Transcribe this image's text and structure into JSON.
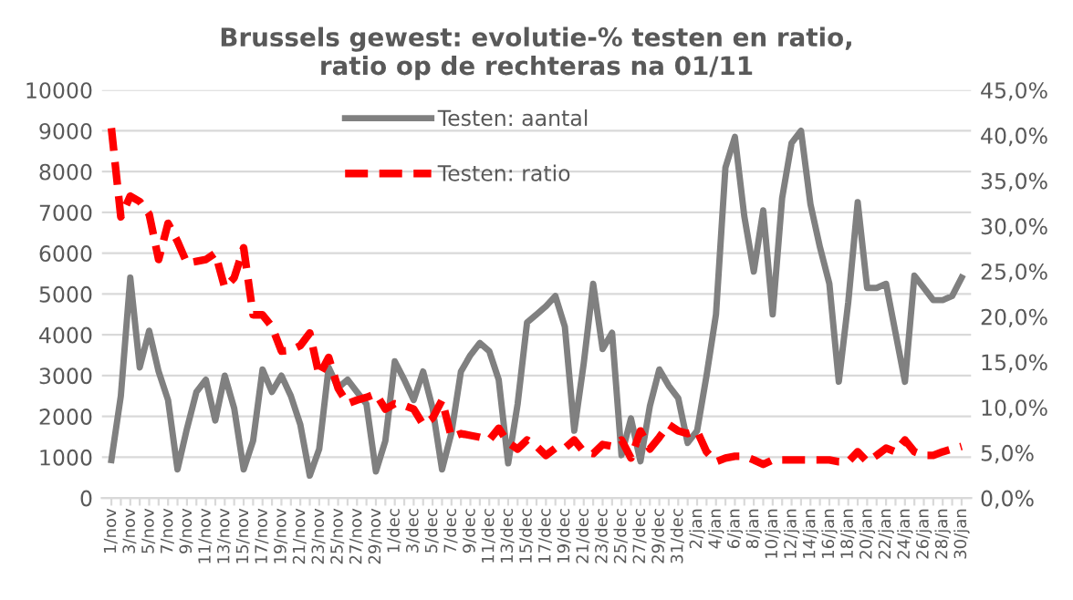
{
  "chart_data": {
    "type": "line",
    "title": "Brussels gewest: evolutie-% testen en ratio,\nratio op de rechteras na 01/11",
    "categories": [
      "1/nov",
      null,
      "3/nov",
      null,
      "5/nov",
      null,
      "7/nov",
      null,
      "9/nov",
      null,
      "11/nov",
      null,
      "13/nov",
      null,
      "15/nov",
      null,
      "17/nov",
      null,
      "19/nov",
      null,
      "21/nov",
      null,
      "23/nov",
      null,
      "25/nov",
      null,
      "27/nov",
      null,
      "29/nov",
      null,
      "1/dec",
      null,
      "3/dec",
      null,
      "5/dec",
      null,
      "7/dec",
      null,
      "9/dec",
      null,
      "11/dec",
      null,
      "13/dec",
      null,
      "15/dec",
      null,
      "17/dec",
      null,
      "19/dec",
      null,
      "21/dec",
      null,
      "23/dec",
      null,
      "25/dec",
      null,
      "27/dec",
      null,
      "29/dec",
      null,
      "31/dec",
      null,
      "2/jan",
      null,
      "4/jan",
      null,
      "6/jan",
      null,
      "8/jan",
      null,
      "10/jan",
      null,
      "12/jan",
      null,
      "14/jan",
      null,
      "16/jan",
      null,
      "18/jan",
      null,
      "20/jan",
      null,
      "22/jan",
      null,
      "24/jan",
      null,
      "26/jan",
      null,
      "28/jan",
      null,
      "30/jan"
    ],
    "series": [
      {
        "name": "Testen: aantal",
        "color": "#808080",
        "line_style": "solid",
        "values": [
          930,
          2500,
          5400,
          3200,
          4100,
          3100,
          2400,
          700,
          1700,
          2600,
          2900,
          1900,
          3000,
          2200,
          700,
          1400,
          3150,
          2600,
          3000,
          2500,
          1800,
          550,
          1200,
          3200,
          2700,
          2900,
          2600,
          2300,
          650,
          1400,
          3350,
          2900,
          2400,
          3100,
          2200,
          700,
          1600,
          3100,
          3500,
          3800,
          3600,
          2900,
          850,
          2300,
          4300,
          4500,
          4700,
          4950,
          4200,
          1650,
          3300,
          5250,
          3650,
          4050,
          1050,
          1950,
          900,
          2250,
          3150,
          2750,
          2450,
          1350,
          1650,
          3000,
          4500,
          8100,
          8850,
          6900,
          5550,
          7050,
          4500,
          7350,
          8700,
          9000,
          7200,
          6150,
          5250,
          2850,
          4800,
          7250,
          5150,
          5150,
          5250,
          4050,
          2850,
          5450,
          5150,
          4850,
          4850,
          4950,
          5400
        ]
      },
      {
        "name": "Testen: ratio",
        "color": "#ff0000",
        "line_style": "dashed",
        "axis": "y2",
        "values": [
          40.8,
          31.0,
          33.3,
          32.7,
          31.3,
          26.3,
          30.3,
          28.3,
          25.9,
          26.1,
          26.3,
          27.0,
          23.2,
          24.3,
          27.6,
          20.2,
          20.2,
          18.9,
          16.2,
          16.3,
          16.8,
          18.2,
          13.5,
          15.5,
          12.1,
          10.4,
          10.8,
          11.1,
          11.5,
          9.8,
          10.4,
          10.2,
          9.8,
          8.1,
          8.8,
          10.8,
          6.7,
          7.1,
          6.9,
          6.7,
          6.4,
          7.7,
          6.1,
          5.4,
          6.4,
          5.7,
          4.7,
          5.5,
          5.5,
          6.4,
          5.1,
          4.9,
          5.9,
          5.7,
          6.4,
          4.4,
          7.4,
          5.4,
          6.7,
          8.1,
          7.4,
          7.1,
          7.4,
          5.1,
          4.0,
          4.4,
          4.6,
          4.6,
          4.2,
          3.7,
          4.2,
          4.2,
          4.2,
          4.2,
          4.2,
          4.2,
          4.2,
          4.0,
          4.0,
          5.1,
          4.0,
          4.7,
          5.5,
          5.1,
          6.4,
          5.1,
          4.7,
          4.7,
          5.1,
          5.4,
          5.7
        ]
      }
    ],
    "ylim": [
      0,
      10000
    ],
    "yticks": [
      0,
      1000,
      2000,
      3000,
      4000,
      5000,
      6000,
      7000,
      8000,
      9000,
      10000
    ],
    "y2lim": [
      0,
      45
    ],
    "y2ticks": [
      {
        "value": 0,
        "label": "0,0%"
      },
      {
        "value": 5,
        "label": "5,0%"
      },
      {
        "value": 10,
        "label": "10,0%"
      },
      {
        "value": 15,
        "label": "15,0%"
      },
      {
        "value": 20,
        "label": "20,0%"
      },
      {
        "value": 25,
        "label": "25,0%"
      },
      {
        "value": 30,
        "label": "30,0%"
      },
      {
        "value": 35,
        "label": "35,0%"
      },
      {
        "value": 40,
        "label": "40,0%"
      },
      {
        "value": 45,
        "label": "45,0%"
      }
    ],
    "grid": "y",
    "legend": "top"
  }
}
